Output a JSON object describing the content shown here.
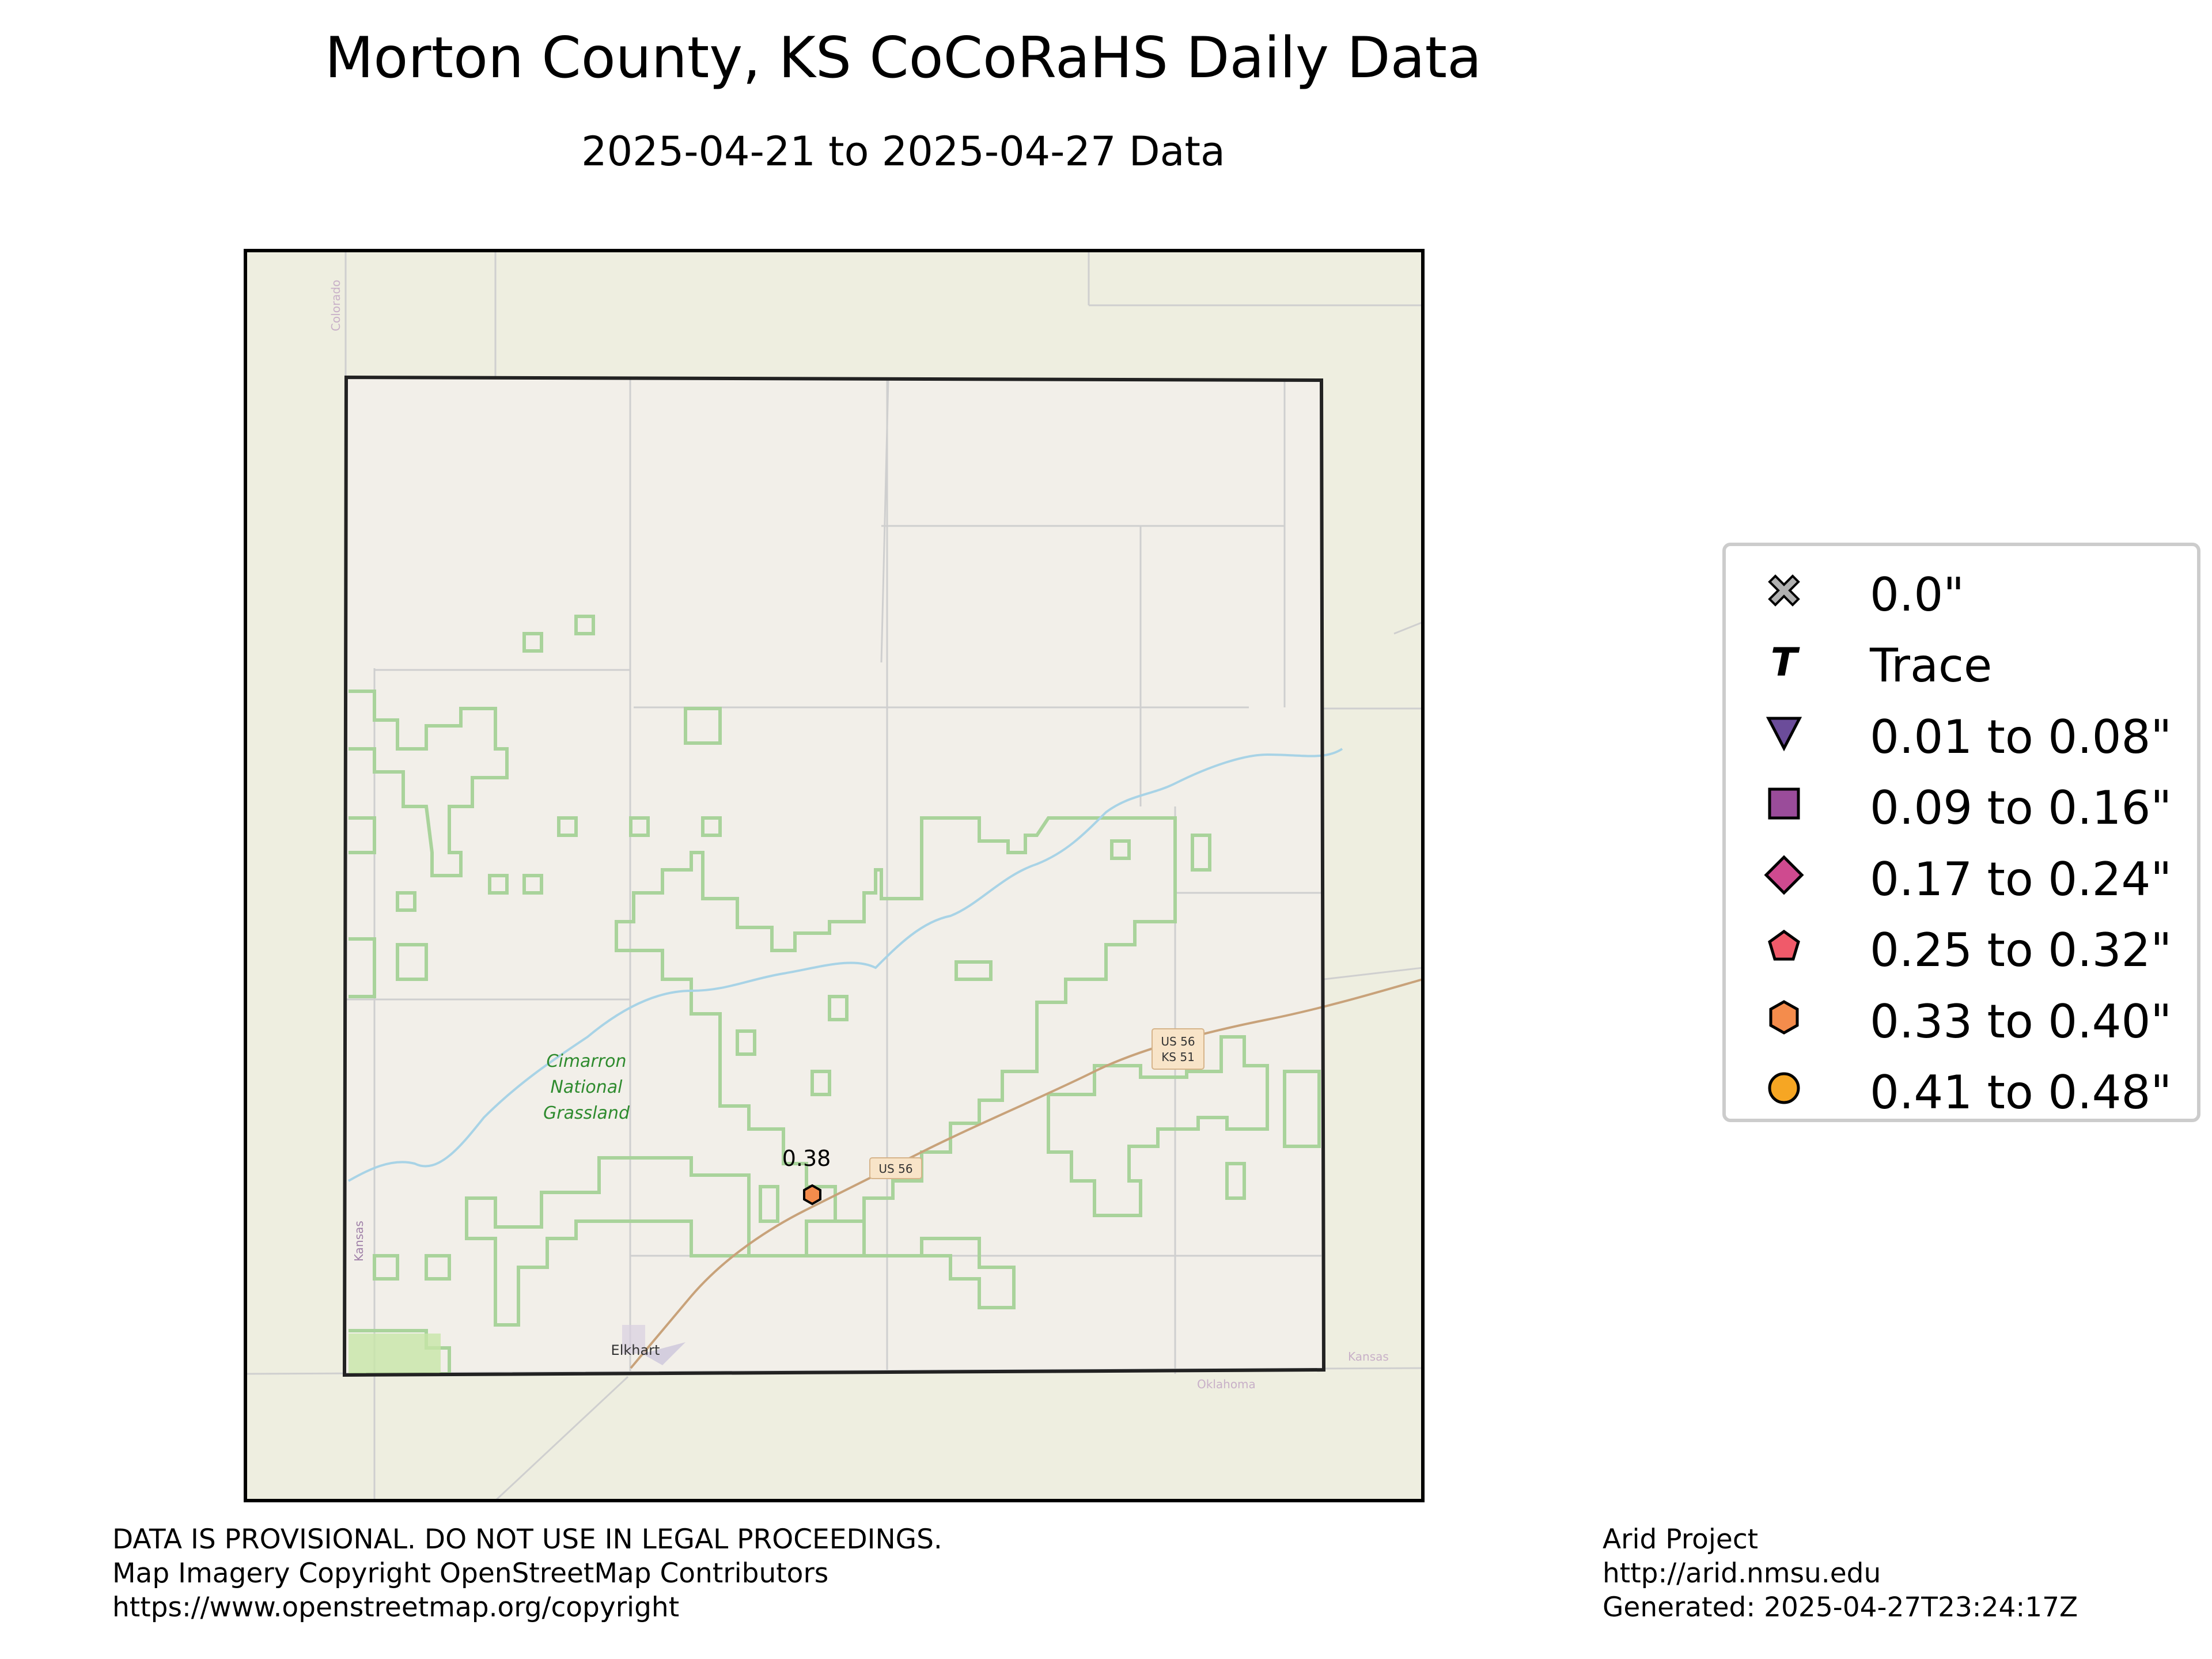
{
  "title": "Morton County, KS CoCoRaHS Daily Data",
  "subtitle": "2025-04-21 to 2025-04-27 Data",
  "map": {
    "place_labels": {
      "grassland": [
        "Cimarron",
        "National",
        "Grassland"
      ],
      "city": "Elkhart",
      "shield_us56": "US 56",
      "shield_us56_ks51": [
        "US 56",
        "KS 51"
      ],
      "state_colorado": "Colorado",
      "state_kansas_west": "Kansas",
      "state_kansas_east": "Kansas",
      "state_oklahoma": "Oklahoma"
    },
    "colors": {
      "base": "#eeeee0",
      "county": "#f2efe9",
      "grassland_outline": "#a9d39b",
      "river": "#a8d3e6",
      "road": "#c8a27a",
      "county_roads": "#cfcfcf"
    },
    "stations": [
      {
        "value": "0.38",
        "category": "0.33 to 0.40\"",
        "marker": "hexagon",
        "color": "#f48c4c"
      }
    ]
  },
  "legend": {
    "items": [
      {
        "label": "0.0\"",
        "marker": "x-icon",
        "color": "#b0b0b0"
      },
      {
        "label": "Trace",
        "marker": "trace-T-icon",
        "color": "#000000"
      },
      {
        "label": "0.01 to 0.08\"",
        "marker": "triangle-down-icon",
        "color": "#6b4c9a"
      },
      {
        "label": "0.09 to 0.16\"",
        "marker": "square-icon",
        "color": "#9a4c9a"
      },
      {
        "label": "0.17 to 0.24\"",
        "marker": "diamond-icon",
        "color": "#cf4a8f"
      },
      {
        "label": "0.25 to 0.32\"",
        "marker": "pentagon-icon",
        "color": "#f05a6a"
      },
      {
        "label": "0.33 to 0.40\"",
        "marker": "hexagon-icon",
        "color": "#f48c4c"
      },
      {
        "label": "0.41 to 0.48\"",
        "marker": "circle-icon",
        "color": "#f6a623"
      }
    ]
  },
  "footer": {
    "left": [
      "DATA IS PROVISIONAL. DO NOT USE IN LEGAL PROCEEDINGS.",
      "Map Imagery Copyright OpenStreetMap Contributors",
      "https://www.openstreetmap.org/copyright"
    ],
    "right": [
      "Arid Project",
      "http://arid.nmsu.edu",
      "Generated: 2025-04-27T23:24:17Z"
    ]
  }
}
